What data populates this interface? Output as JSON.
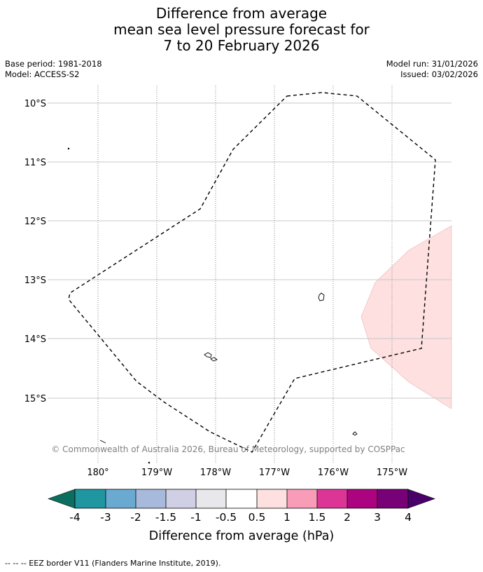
{
  "title": {
    "line1": "Difference from average",
    "line2": "mean sea level pressure forecast for",
    "line3": "7 to 20 February 2026"
  },
  "meta": {
    "base_period": "Base period: 1981-2018",
    "model": "Model: ACCESS-S2",
    "model_run": "Model run: 31/01/2026",
    "issued": "Issued: 03/02/2026"
  },
  "map": {
    "lat_labels": [
      "10°S",
      "11°S",
      "12°S",
      "13°S",
      "14°S",
      "15°S"
    ],
    "lon_labels": [
      "180°",
      "179°W",
      "178°W",
      "177°W",
      "176°W",
      "175°W"
    ],
    "credit": "© Commonwealth of Australia 2026, Bureau of Meteorology, supported by COSPPac",
    "anomaly_fill_color": "#fde0df",
    "anomaly_category": "0.5 to 1"
  },
  "colorbar": {
    "labels": [
      "-4",
      "-3",
      "-2",
      "-1.5",
      "-1",
      "-0.5",
      "0.5",
      "1",
      "1.5",
      "2",
      "3",
      "4"
    ],
    "colors": [
      "#0c6e5f",
      "#2096a1",
      "#6aaad1",
      "#a7badc",
      "#cfd0e5",
      "#e8e7ec",
      "#ffffff",
      "#fde0df",
      "#f89cb8",
      "#dc3595",
      "#ac0380",
      "#790177",
      "#4a006a"
    ],
    "title": "Difference from average (hPa)"
  },
  "legend": {
    "eez_note": "--  --  -- EEZ border V11 (Flanders Marine Institute, 2019)."
  }
}
